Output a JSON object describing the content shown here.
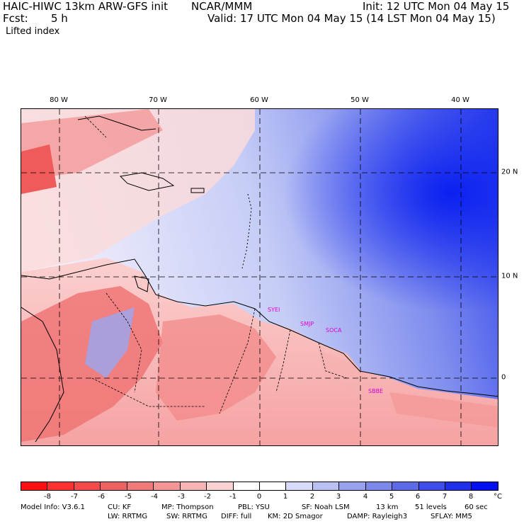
{
  "header": {
    "model": "HAIC-HIWC 13km ARW-GFS init",
    "org": "NCAR/MMM",
    "init": "Init: 12 UTC Mon 04 May 15",
    "fcst_label": "Fcst:",
    "fcst_value": "5 h",
    "valid": "Valid: 17 UTC Mon 04 May 15 (14 LST Mon 04 May 15)",
    "field": "Lifted index"
  },
  "map": {
    "lon_labels": [
      "80 W",
      "70 W",
      "60 W",
      "50 W",
      "40 W"
    ],
    "lat_labels": [
      "20 N",
      "10 N",
      "0"
    ],
    "stations": [
      "SYEI",
      "SMJP",
      "SOCA",
      "SBBE"
    ]
  },
  "colorbar": {
    "ticks": [
      "-8",
      "-7",
      "-6",
      "-5",
      "-4",
      "-3",
      "-2",
      "-1",
      "0",
      "1",
      "2",
      "3",
      "4",
      "5",
      "6",
      "7",
      "8"
    ],
    "unit": "°C",
    "colors": [
      "#ff1010",
      "#ff3030",
      "#f44a4a",
      "#ef6262",
      "#f07a7a",
      "#f49696",
      "#f8b4b4",
      "#fbd2d2",
      "#ffffff",
      "#ffffff",
      "#d8dcfa",
      "#b8c0f4",
      "#98a2ee",
      "#7c88ea",
      "#5c6ae8",
      "#3e4ce8",
      "#2030ea",
      "#0010f0"
    ]
  },
  "footer": {
    "line1": {
      "model_info": "Model Info: V3.6.1",
      "cu": "CU: KF",
      "mp": "MP: Thompson",
      "pbl": "PBL: YSU",
      "sf": "SF: Noah LSM",
      "res": "13 km",
      "levels": "51 levels",
      "dt": "60 sec"
    },
    "line2": {
      "lw": "LW: RRTMG",
      "sw": "SW: RRTMG",
      "diff": "DIFF: full",
      "km": "KM: 2D Smagor",
      "damp": "DAMP: Rayleigh3",
      "sflay": "SFLAY: MM5"
    }
  }
}
